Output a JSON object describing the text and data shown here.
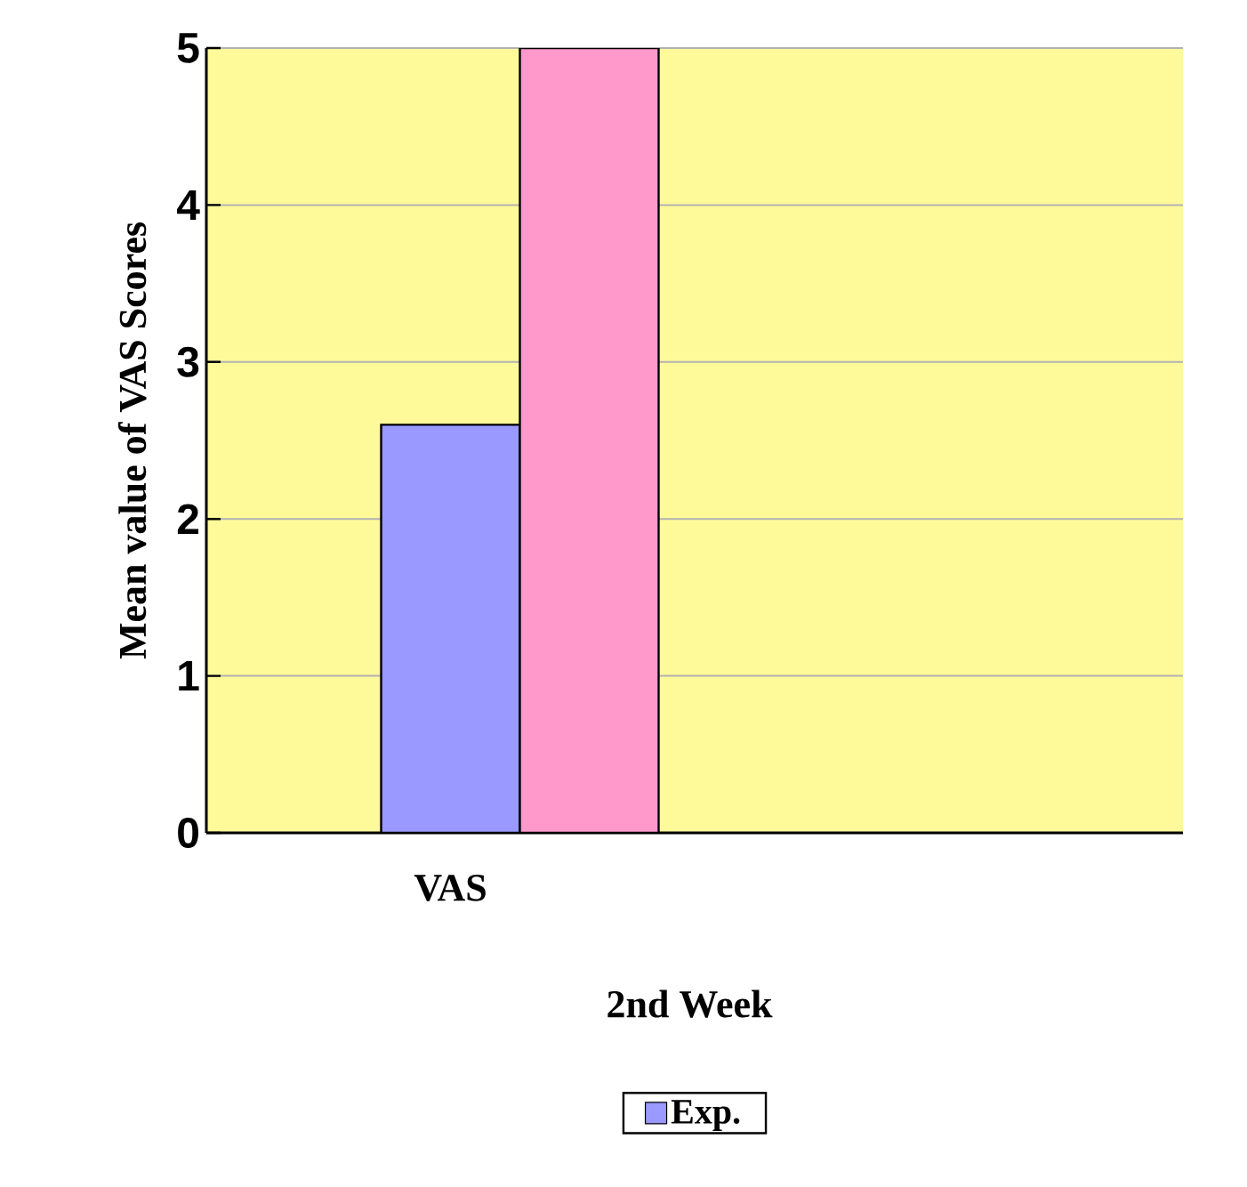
{
  "chart_data": {
    "type": "bar",
    "xlabel": "2nd Week",
    "ylabel": "Mean value of VAS  Scores",
    "categories": [
      "VAS",
      null
    ],
    "series": [
      {
        "name": "Exp.",
        "color": "#9999ff",
        "values": [
          2.6,
          null
        ]
      },
      {
        "color": "#ff99cc",
        "values": [
          5.0,
          null
        ]
      }
    ],
    "ylim": [
      0,
      5
    ],
    "yticks": [
      0,
      1,
      2,
      3,
      4,
      5
    ],
    "grid": "y",
    "legend": "bottom"
  }
}
